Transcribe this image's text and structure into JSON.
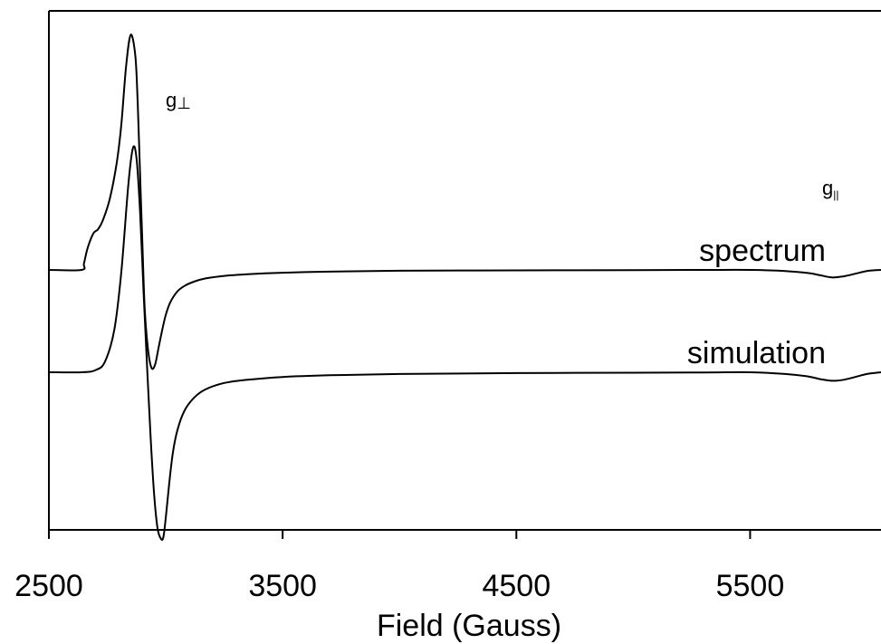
{
  "chart_data": {
    "type": "line",
    "title": "",
    "xlabel": "Field (Gauss)",
    "ylabel": "",
    "xlim": [
      2500,
      6060
    ],
    "xticks": [
      2500,
      3500,
      4500,
      5500
    ],
    "xtick_labels": [
      "2500",
      "3500",
      "4500",
      "5500"
    ],
    "y_axis_ticks": false,
    "grid": false,
    "annotations": [
      {
        "id": "gperp",
        "base": "g",
        "sub": "⊥",
        "x": 3000
      },
      {
        "id": "gpar",
        "base": "g",
        "sub": "||",
        "x": 5860
      }
    ],
    "series": [
      {
        "name": "spectrum",
        "color": "#000000",
        "x": [
          2500,
          2640,
          2650,
          2665,
          2690,
          2710,
          2730,
          2760,
          2790,
          2810,
          2830,
          2850,
          2870,
          2880,
          2890,
          2900,
          2910,
          2925,
          2940,
          2955,
          2970,
          2985,
          3000,
          3020,
          3050,
          3080,
          3120,
          3170,
          3250,
          3350,
          3500,
          3700,
          4000,
          4500,
          5000,
          5300,
          5500,
          5650,
          5750,
          5800,
          5850,
          5900,
          5950,
          6000,
          6060
        ],
        "y": [
          0.0,
          0.0,
          0.03,
          0.1,
          0.17,
          0.19,
          0.23,
          0.33,
          0.5,
          0.68,
          0.95,
          1.1,
          1.0,
          0.78,
          0.45,
          0.12,
          -0.18,
          -0.38,
          -0.46,
          -0.44,
          -0.36,
          -0.28,
          -0.21,
          -0.15,
          -0.1,
          -0.075,
          -0.055,
          -0.04,
          -0.028,
          -0.02,
          -0.013,
          -0.008,
          -0.004,
          -0.002,
          -0.001,
          0.0,
          0.0,
          -0.005,
          -0.015,
          -0.025,
          -0.035,
          -0.03,
          -0.018,
          -0.005,
          0.0
        ]
      },
      {
        "name": "simulation",
        "color": "#000000",
        "x": [
          2500,
          2640,
          2700,
          2740,
          2780,
          2810,
          2840,
          2860,
          2875,
          2890,
          2905,
          2920,
          2935,
          2950,
          2965,
          2980,
          2990,
          3000,
          3015,
          3030,
          3050,
          3080,
          3120,
          3170,
          3250,
          3350,
          3500,
          3700,
          4000,
          4500,
          5000,
          5300,
          5500,
          5650,
          5750,
          5800,
          5850,
          5900,
          5950,
          6000,
          6060
        ],
        "y": [
          0.0,
          0.0,
          0.01,
          0.05,
          0.2,
          0.47,
          0.88,
          1.05,
          1.0,
          0.75,
          0.38,
          0.03,
          -0.3,
          -0.57,
          -0.73,
          -0.78,
          -0.77,
          -0.68,
          -0.52,
          -0.38,
          -0.27,
          -0.18,
          -0.12,
          -0.08,
          -0.05,
          -0.035,
          -0.022,
          -0.014,
          -0.008,
          -0.004,
          -0.002,
          -0.001,
          0.0,
          -0.008,
          -0.02,
          -0.032,
          -0.04,
          -0.035,
          -0.022,
          -0.008,
          0.0
        ]
      }
    ]
  }
}
